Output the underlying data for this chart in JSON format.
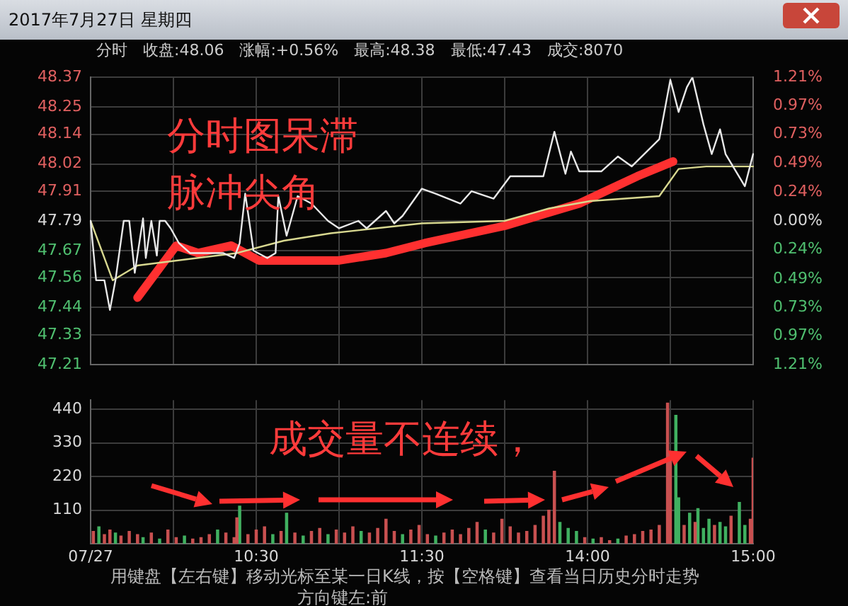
{
  "chart_data": [
    {
      "type": "line",
      "title": "2017年7月27日 星期四",
      "subtitle": "分时　收盘:48.06　涨幅:+0.56%　最高:48.38　最低:47.43　成交:8070",
      "annotations": [
        "分时图呆滞",
        "脉冲尖角"
      ],
      "categories": [
        null,
        null,
        null,
        null,
        null,
        null,
        null,
        null,
        null,
        null,
        null,
        null,
        null,
        null,
        null,
        null,
        null,
        null,
        null,
        null,
        null,
        null,
        null,
        null,
        null,
        null,
        null,
        null,
        null,
        null,
        null,
        null,
        null,
        null,
        null,
        null,
        null,
        null,
        null,
        null,
        null,
        null,
        null,
        null,
        null,
        null,
        null,
        null,
        null,
        null,
        null,
        null,
        null,
        null,
        null,
        null,
        null,
        null,
        null,
        null,
        null,
        null,
        null,
        null,
        null,
        null,
        null,
        null,
        null,
        null,
        null,
        null,
        null,
        null,
        null,
        null,
        null,
        null,
        null,
        null,
        null,
        null,
        null,
        null,
        null,
        null,
        null,
        null,
        null,
        null,
        null,
        null,
        null,
        null,
        null,
        null,
        null,
        null,
        null,
        null,
        null,
        null,
        null,
        null,
        null,
        null,
        null,
        null,
        null,
        null,
        null,
        null,
        null,
        null,
        null,
        null,
        null,
        null,
        null,
        null,
        null,
        null,
        null,
        null,
        null,
        null,
        null,
        null,
        null,
        null,
        null,
        null,
        null,
        null,
        null,
        null,
        null,
        null,
        null,
        null,
        null,
        null,
        null,
        null,
        null,
        null,
        null,
        null,
        null,
        null,
        null,
        null,
        null,
        null,
        null,
        null,
        null,
        null,
        null,
        null,
        null,
        null,
        null,
        null,
        null,
        null,
        null,
        null,
        null,
        null,
        null,
        null,
        null,
        null,
        null,
        null,
        null,
        null,
        null,
        null,
        null,
        null,
        null,
        null,
        null,
        null,
        null,
        null,
        null,
        null,
        null,
        null,
        null,
        null,
        null,
        null,
        null,
        null,
        null,
        null,
        null,
        null,
        null,
        null,
        null,
        null,
        null,
        null,
        null,
        null,
        null,
        null,
        null,
        null,
        null,
        null,
        null,
        null,
        null,
        null,
        null,
        null,
        null,
        null,
        null,
        null,
        null,
        null,
        null,
        null,
        null,
        null,
        null,
        null,
        null,
        null,
        null,
        null,
        null,
        null,
        null
      ],
      "ylim": [
        47.21,
        48.37
      ],
      "yticks": [
        47.21,
        47.33,
        47.44,
        47.56,
        47.67,
        47.79,
        47.91,
        48.02,
        48.14,
        48.25,
        48.37
      ],
      "y2lim": [
        -1.21,
        1.21
      ],
      "y2ticks": [
        {
          "value": -1.21,
          "label": "1.21%"
        },
        {
          "value": -0.97,
          "label": "0.97%"
        },
        {
          "value": -0.73,
          "label": "0.73%"
        },
        {
          "value": -0.49,
          "label": "0.49%"
        },
        {
          "value": -0.24,
          "label": "0.24%"
        },
        {
          "value": 0,
          "label": "0.00%"
        },
        {
          "value": 0.24,
          "label": "0.24%"
        },
        {
          "value": 0.49,
          "label": "0.49%"
        },
        {
          "value": 0.73,
          "label": "0.73%"
        },
        {
          "value": 0.97,
          "label": "0.97%"
        },
        {
          "value": 1.21,
          "label": "1.21%"
        }
      ],
      "grid": true,
      "legend": false,
      "tick_labels": "y",
      "marker": "none",
      "series": [
        {
          "type": "line",
          "color": "#e8e8e8",
          "values": [
            47.79,
            null,
            47.55,
            null,
            null,
            47.55,
            null,
            47.43,
            null,
            47.55,
            null,
            null,
            47.79,
            null,
            47.79,
            null,
            47.58,
            null,
            null,
            47.8,
            47.64,
            null,
            47.79,
            null,
            47.65,
            47.79,
            null,
            47.79,
            null,
            47.76,
            null,
            null,
            47.7,
            null,
            null,
            null,
            47.66,
            null,
            null,
            null,
            null,
            null,
            47.66,
            null,
            null,
            null,
            null,
            null,
            47.66,
            null,
            null,
            null,
            47.64,
            null,
            47.7,
            null,
            47.9,
            null,
            null,
            47.67,
            null,
            null,
            null,
            null,
            47.64,
            null,
            null,
            47.66,
            47.89,
            null,
            null,
            47.73,
            null,
            null,
            null,
            47.89,
            null,
            null,
            null,
            null,
            47.86,
            null,
            null,
            null,
            null,
            null,
            47.79,
            null,
            null,
            null,
            47.76,
            null,
            null,
            null,
            null,
            null,
            null,
            47.79,
            null,
            null,
            47.76,
            null,
            null,
            null,
            null,
            null,
            null,
            47.83,
            null,
            null,
            47.78,
            null,
            null,
            47.81,
            null,
            null,
            null,
            null,
            null,
            null,
            47.92,
            null,
            null,
            null,
            null,
            47.9,
            null,
            null,
            null,
            null,
            null,
            null,
            null,
            null,
            47.86,
            null,
            null,
            null,
            47.91,
            null,
            null,
            null,
            null,
            null,
            null,
            null,
            47.88,
            null,
            null,
            null,
            null,
            null,
            47.97,
            null,
            null,
            null,
            null,
            null,
            null,
            null,
            null,
            null,
            null,
            null,
            47.97,
            null,
            null,
            null,
            48.15,
            null,
            null,
            null,
            47.98,
            null,
            48.07,
            null,
            null,
            47.99,
            null,
            null,
            null,
            null,
            null,
            null,
            null,
            47.99,
            null,
            null,
            null,
            null,
            null,
            48.05,
            null,
            null,
            null,
            null,
            48.01,
            null,
            null,
            null,
            null,
            null,
            null,
            null,
            null,
            null,
            48.12,
            48.18,
            null,
            null,
            48.36,
            null,
            null,
            48.23,
            null,
            null,
            48.33,
            null,
            48.37,
            null,
            null,
            null,
            48.18,
            null,
            null,
            48.06,
            null,
            null,
            48.16,
            null,
            48.06,
            null,
            null,
            null,
            null,
            null,
            null,
            47.93,
            null,
            null,
            48.06
          ]
        },
        {
          "type": "line",
          "color": "#d8d890",
          "values": [
            47.79,
            null,
            null,
            null,
            null,
            null,
            null,
            null,
            47.55,
            null,
            null,
            null,
            null,
            null,
            null,
            null,
            null,
            47.61,
            null,
            null,
            null,
            null,
            null,
            null,
            null,
            null,
            null,
            null,
            null,
            null,
            null,
            null,
            null,
            null,
            null,
            null,
            null,
            null,
            null,
            null,
            null,
            null,
            null,
            null,
            null,
            null,
            null,
            null,
            null,
            null,
            null,
            null,
            null,
            47.66,
            null,
            null,
            null,
            null,
            null,
            null,
            null,
            null,
            null,
            null,
            null,
            null,
            null,
            null,
            null,
            null,
            47.71,
            null,
            null,
            null,
            null,
            null,
            null,
            null,
            null,
            null,
            null,
            null,
            null,
            null,
            null,
            null,
            null,
            47.74,
            null,
            null,
            null,
            null,
            null,
            null,
            null,
            null,
            null,
            null,
            null,
            null,
            null,
            null,
            null,
            null,
            null,
            null,
            null,
            null,
            null,
            null,
            null,
            null,
            null,
            null,
            null,
            null,
            null,
            null,
            null,
            null,
            47.78,
            null,
            null,
            null,
            null,
            null,
            null,
            null,
            null,
            null,
            null,
            null,
            null,
            null,
            null,
            null,
            null,
            null,
            null,
            null,
            null,
            null,
            null,
            null,
            null,
            null,
            null,
            null,
            null,
            null,
            47.79,
            null,
            null,
            null,
            null,
            null,
            null,
            null,
            null,
            null,
            null,
            null,
            null,
            null,
            null,
            null,
            47.84,
            null,
            null,
            null,
            null,
            null,
            null,
            null,
            null,
            null,
            null,
            null,
            null,
            null,
            null,
            47.87,
            null,
            null,
            null,
            null,
            null,
            null,
            null,
            null,
            null,
            null,
            null,
            null,
            null,
            null,
            null,
            null,
            null,
            null,
            null,
            null,
            null,
            null,
            null,
            null,
            47.89,
            null,
            null,
            null,
            null,
            null,
            null,
            48.0,
            null,
            null,
            null,
            null,
            null,
            null,
            null,
            null,
            null,
            48.01,
            null,
            null,
            null,
            null,
            null,
            null,
            null,
            null,
            null,
            null,
            null,
            null,
            null,
            null,
            null,
            null,
            48.01
          ]
        },
        {
          "type": "line",
          "color": "#ff3030",
          "values": [
            null,
            null,
            null,
            null,
            null,
            null,
            null,
            null,
            null,
            null,
            null,
            null,
            null,
            null,
            null,
            null,
            null,
            47.48,
            null,
            null,
            null,
            null,
            null,
            null,
            null,
            null,
            null,
            null,
            null,
            null,
            null,
            47.69,
            null,
            null,
            null,
            null,
            null,
            null,
            null,
            47.66,
            null,
            null,
            null,
            null,
            null,
            null,
            null,
            null,
            null,
            null,
            null,
            47.69,
            null,
            null,
            null,
            null,
            null,
            null,
            null,
            null,
            null,
            47.63,
            null,
            null,
            null,
            null,
            null,
            null,
            null,
            null,
            null,
            null,
            null,
            null,
            null,
            null,
            null,
            null,
            null,
            null,
            null,
            null,
            null,
            null,
            null,
            null,
            null,
            null,
            null,
            null,
            47.63,
            null,
            null,
            null,
            null,
            null,
            null,
            null,
            null,
            null,
            null,
            null,
            null,
            null,
            null,
            null,
            null,
            47.66,
            null,
            null,
            null,
            null,
            null,
            null,
            null,
            null,
            null,
            null,
            null,
            null,
            null,
            47.7,
            null,
            null,
            null,
            null,
            null,
            null,
            null,
            null,
            null,
            null,
            null,
            null,
            null,
            null,
            null,
            null,
            null,
            null,
            null,
            null,
            null,
            null,
            null,
            null,
            null,
            null,
            null,
            null,
            47.77,
            null,
            null,
            null,
            null,
            null,
            null,
            null,
            null,
            null,
            null,
            null,
            null,
            null,
            null,
            null,
            null,
            null,
            null,
            null,
            null,
            null,
            null,
            null,
            null,
            null,
            null,
            47.86,
            null,
            null,
            null,
            null,
            null,
            null,
            null,
            null,
            null,
            null,
            null,
            null,
            null,
            null,
            null,
            null,
            null,
            null,
            null,
            null,
            47.97,
            null,
            null,
            null,
            null,
            null,
            null,
            null,
            null,
            null,
            null,
            null,
            null,
            48.03,
            null,
            null,
            null,
            null,
            null,
            null,
            null,
            null,
            null,
            null,
            null,
            null,
            null,
            null,
            null,
            null,
            null,
            null,
            null,
            null,
            null,
            null,
            null,
            null,
            null,
            null,
            null,
            null,
            null
          ]
        }
      ]
    },
    {
      "type": "bar",
      "annotations": [
        "成交量不连续，",
        "用键盘【左右键】移动光标至某一日K线，按【空格键】查看当日历史分时走势",
        "方向键左:前"
      ],
      "categories": [
        "07/27",
        null,
        null,
        null,
        null,
        null,
        null,
        null,
        null,
        null,
        null,
        null,
        null,
        null,
        null,
        null,
        null,
        null,
        null,
        null,
        null,
        null,
        null,
        null,
        null,
        null,
        null,
        null,
        null,
        null,
        null,
        null,
        null,
        null,
        null,
        null,
        null,
        null,
        null,
        null,
        null,
        null,
        null,
        null,
        null,
        null,
        null,
        null,
        null,
        null,
        null,
        null,
        null,
        null,
        null,
        null,
        null,
        null,
        null,
        null,
        "10:30",
        null,
        null,
        null,
        null,
        null,
        null,
        null,
        null,
        null,
        null,
        null,
        null,
        null,
        null,
        null,
        null,
        null,
        null,
        null,
        null,
        null,
        null,
        null,
        null,
        null,
        null,
        null,
        null,
        null,
        null,
        null,
        null,
        null,
        null,
        null,
        null,
        null,
        null,
        null,
        null,
        null,
        null,
        null,
        null,
        null,
        null,
        null,
        null,
        null,
        null,
        null,
        null,
        null,
        null,
        null,
        null,
        null,
        null,
        null,
        "11:30",
        null,
        null,
        null,
        null,
        null,
        null,
        null,
        null,
        null,
        null,
        null,
        null,
        null,
        null,
        null,
        null,
        null,
        null,
        null,
        null,
        null,
        null,
        null,
        null,
        null,
        null,
        null,
        null,
        null,
        null,
        null,
        null,
        null,
        null,
        null,
        null,
        null,
        null,
        null,
        null,
        null,
        null,
        null,
        null,
        null,
        null,
        null,
        null,
        null,
        null,
        null,
        null,
        null,
        null,
        null,
        null,
        null,
        null,
        null,
        "14:00",
        null,
        null,
        null,
        null,
        null,
        null,
        null,
        null,
        null,
        null,
        null,
        null,
        null,
        null,
        null,
        null,
        null,
        null,
        null,
        null,
        null,
        null,
        null,
        null,
        null,
        null,
        null,
        null,
        null,
        null,
        null,
        null,
        null,
        null,
        null,
        null,
        null,
        null,
        null,
        null,
        null,
        null,
        null,
        null,
        null,
        null,
        null,
        null,
        null,
        null,
        null,
        null,
        null,
        null,
        null,
        null,
        null,
        null,
        null,
        "15:00"
      ],
      "ylim": [
        0,
        470
      ],
      "yticks": [
        110,
        220,
        330,
        440
      ],
      "grid": true,
      "legend": false,
      "series": [
        {
          "color": "#c85050",
          "values": [
            null,
            40,
            null,
            null,
            null,
            30,
            null,
            45,
            null,
            null,
            null,
            25,
            null,
            null,
            40,
            null,
            null,
            30,
            null,
            null,
            null,
            null,
            35,
            null,
            null,
            null,
            null,
            null,
            45,
            null,
            null,
            20,
            null,
            null,
            null,
            null,
            null,
            15,
            null,
            null,
            20,
            null,
            null,
            30,
            null,
            null,
            null,
            null,
            null,
            35,
            null,
            null,
            20,
            85,
            null,
            null,
            null,
            30,
            null,
            null,
            45,
            null,
            null,
            55,
            null,
            null,
            null,
            null,
            null,
            40,
            null,
            null,
            null,
            null,
            35,
            null,
            null,
            null,
            null,
            null,
            40,
            null,
            null,
            50,
            null,
            null,
            null,
            null,
            null,
            45,
            null,
            null,
            35,
            null,
            null,
            55,
            null,
            null,
            null,
            null,
            null,
            35,
            null,
            null,
            50,
            null,
            null,
            80,
            null,
            null,
            40,
            null,
            null,
            null,
            null,
            null,
            45,
            null,
            null,
            60,
            null,
            null,
            30,
            null,
            null,
            null,
            null,
            null,
            35,
            null,
            null,
            45,
            null,
            null,
            30,
            null,
            null,
            50,
            null,
            null,
            70,
            null,
            null,
            null,
            null,
            null,
            35,
            null,
            null,
            80,
            null,
            null,
            55,
            null,
            null,
            35,
            null,
            null,
            40,
            null,
            null,
            60,
            null,
            null,
            90,
            null,
            110,
            null,
            237,
            null,
            null,
            null,
            null,
            null,
            null,
            null,
            null,
            null,
            null,
            20,
            null,
            null,
            null,
            null,
            null,
            20,
            null,
            null,
            10,
            null,
            null,
            null,
            null,
            null,
            25,
            null,
            null,
            30,
            null,
            null,
            40,
            null,
            null,
            45,
            null,
            null,
            60,
            null,
            null,
            460,
            300,
            null,
            null,
            null,
            null,
            60,
            null,
            null,
            null,
            70,
            null,
            null,
            null,
            null,
            null,
            null,
            60,
            null,
            null,
            null,
            null,
            null,
            90,
            null,
            null,
            null,
            null,
            null,
            null,
            80,
            280
          ]
        },
        {
          "color": "#40b060",
          "values": [
            null,
            null,
            null,
            55,
            null,
            null,
            null,
            null,
            null,
            35,
            null,
            null,
            null,
            null,
            null,
            null,
            null,
            null,
            null,
            20,
            null,
            null,
            null,
            null,
            null,
            15,
            null,
            null,
            null,
            null,
            null,
            null,
            null,
            null,
            25,
            null,
            null,
            null,
            null,
            null,
            null,
            null,
            null,
            null,
            null,
            null,
            45,
            null,
            null,
            null,
            null,
            null,
            null,
            null,
            123,
            null,
            null,
            null,
            null,
            null,
            null,
            null,
            null,
            null,
            null,
            null,
            30,
            null,
            null,
            null,
            null,
            100,
            null,
            null,
            null,
            null,
            null,
            25,
            null,
            null,
            null,
            null,
            null,
            null,
            null,
            null,
            30,
            null,
            null,
            null,
            null,
            null,
            null,
            null,
            null,
            null,
            null,
            null,
            40,
            null,
            null,
            null,
            null,
            null,
            null,
            null,
            null,
            null,
            null,
            null,
            null,
            null,
            null,
            30,
            null,
            null,
            null,
            null,
            null,
            null,
            null,
            null,
            null,
            null,
            null,
            25,
            null,
            null,
            null,
            null,
            null,
            null,
            null,
            null,
            null,
            null,
            null,
            null,
            null,
            null,
            null,
            null,
            null,
            45,
            null,
            null,
            null,
            null,
            null,
            null,
            null,
            null,
            null,
            null,
            null,
            null,
            null,
            null,
            null,
            null,
            null,
            null,
            null,
            null,
            null,
            null,
            null,
            null,
            null,
            null,
            70,
            null,
            null,
            50,
            null,
            null,
            40,
            null,
            null,
            null,
            null,
            null,
            15,
            null,
            null,
            null,
            null,
            null,
            null,
            null,
            null,
            15,
            null,
            null,
            null,
            null,
            null,
            null,
            null,
            null,
            null,
            null,
            null,
            null,
            null,
            null,
            null,
            null,
            null,
            null,
            null,
            null,
            420,
            150,
            null,
            null,
            null,
            100,
            null,
            null,
            115,
            null,
            50,
            null,
            80,
            null,
            null,
            null,
            70,
            null,
            55,
            null,
            null,
            null,
            null,
            135,
            null,
            60,
            null,
            null,
            null
          ]
        }
      ]
    }
  ]
}
